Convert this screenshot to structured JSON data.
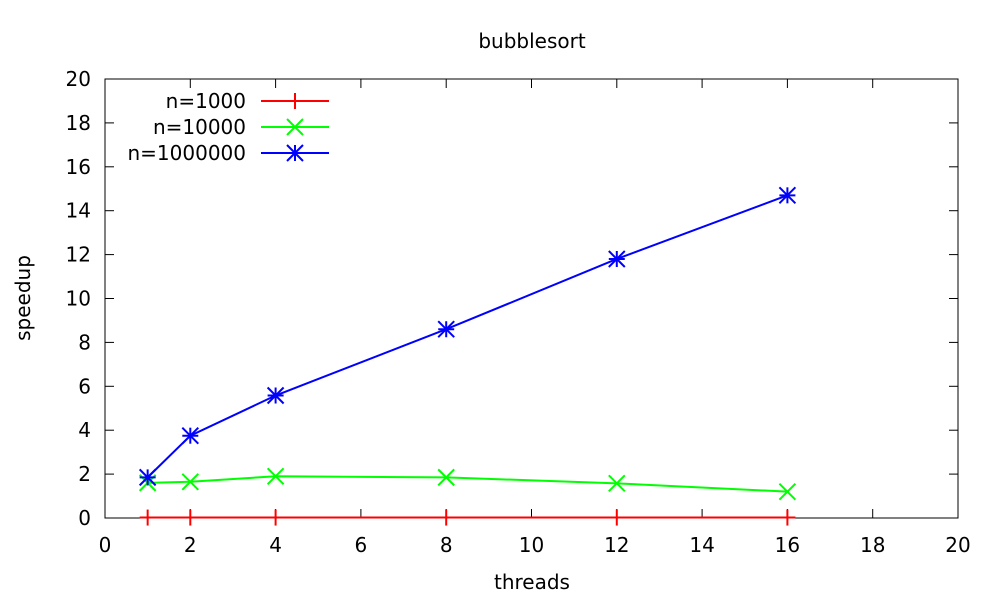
{
  "chart_data": {
    "type": "line",
    "title": "bubblesort",
    "xlabel": "threads",
    "ylabel": "speedup",
    "xlim": [
      0,
      20
    ],
    "ylim": [
      0,
      20
    ],
    "xticks": [
      0,
      2,
      4,
      6,
      8,
      10,
      12,
      14,
      16,
      18,
      20
    ],
    "yticks": [
      0,
      2,
      4,
      6,
      8,
      10,
      12,
      14,
      16,
      18,
      20
    ],
    "grid": false,
    "legend_position": "top-left",
    "series": [
      {
        "name": "n=1000",
        "color": "#ff0000",
        "marker": "plus",
        "x": [
          1,
          2,
          4,
          8,
          12,
          16
        ],
        "y": [
          0.02,
          0.02,
          0.02,
          0.02,
          0.02,
          0.02
        ]
      },
      {
        "name": "n=10000",
        "color": "#00ff00",
        "marker": "cross",
        "x": [
          1,
          2,
          4,
          8,
          12,
          16
        ],
        "y": [
          1.6,
          1.65,
          1.9,
          1.85,
          1.58,
          1.2
        ]
      },
      {
        "name": "n=1000000",
        "color": "#0000ff",
        "marker": "star",
        "x": [
          1,
          2,
          4,
          8,
          12,
          16
        ],
        "y": [
          1.85,
          3.75,
          5.58,
          8.6,
          11.8,
          14.7
        ]
      }
    ]
  }
}
